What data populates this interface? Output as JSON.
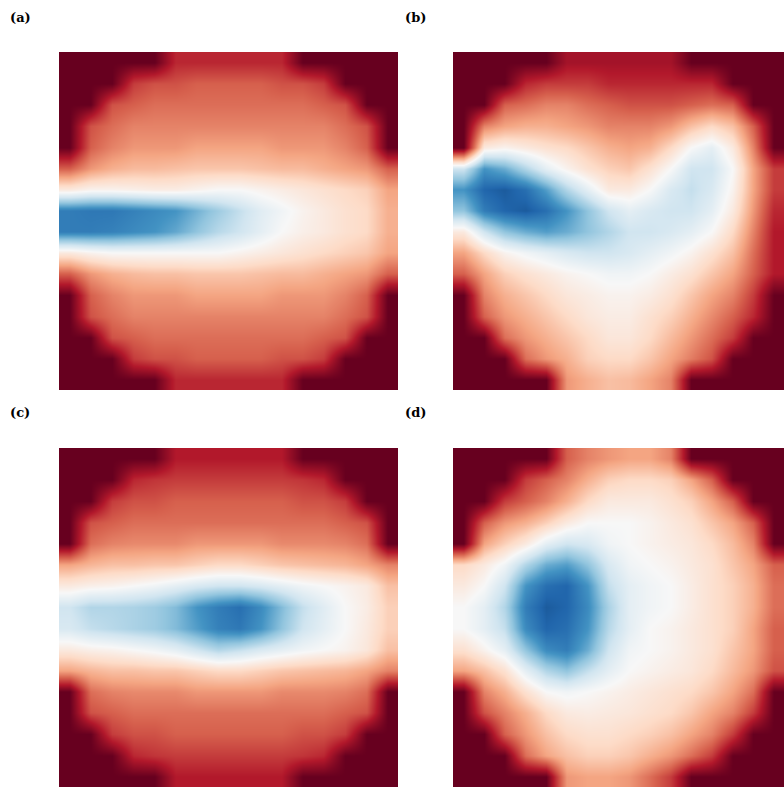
{
  "chart_data": [
    {
      "type": "heatmap",
      "title": "(a)",
      "tick_labels": false,
      "xlim": [
        -0.5,
        15.5
      ],
      "ylim": [
        15.5,
        -0.5
      ],
      "zlim": [
        0,
        1
      ],
      "z": [
        [
          0,
          0,
          0,
          0,
          0,
          0.12,
          0.12,
          0.12,
          0.12,
          0.12,
          0.12,
          0,
          0,
          0,
          0,
          0
        ],
        [
          0,
          0,
          0,
          0.15,
          0.18,
          0.18,
          0.2,
          0.2,
          0.2,
          0.2,
          0.18,
          0.18,
          0.15,
          0,
          0,
          0
        ],
        [
          0,
          0,
          0.18,
          0.2,
          0.22,
          0.22,
          0.22,
          0.22,
          0.22,
          0.22,
          0.22,
          0.22,
          0.2,
          0.18,
          0,
          0
        ],
        [
          0,
          0.18,
          0.22,
          0.25,
          0.25,
          0.25,
          0.25,
          0.25,
          0.25,
          0.25,
          0.25,
          0.25,
          0.25,
          0.22,
          0.18,
          0
        ],
        [
          0,
          0.2,
          0.25,
          0.28,
          0.28,
          0.28,
          0.3,
          0.3,
          0.3,
          0.3,
          0.28,
          0.28,
          0.28,
          0.25,
          0.2,
          0
        ],
        [
          0.2,
          0.28,
          0.32,
          0.34,
          0.34,
          0.35,
          0.36,
          0.36,
          0.36,
          0.35,
          0.34,
          0.34,
          0.32,
          0.3,
          0.28,
          0.2
        ],
        [
          0.45,
          0.48,
          0.48,
          0.47,
          0.46,
          0.46,
          0.48,
          0.5,
          0.5,
          0.48,
          0.46,
          0.44,
          0.42,
          0.4,
          0.38,
          0.3
        ],
        [
          0.85,
          0.86,
          0.86,
          0.84,
          0.82,
          0.8,
          0.74,
          0.68,
          0.62,
          0.56,
          0.52,
          0.48,
          0.45,
          0.42,
          0.4,
          0.32
        ],
        [
          0.85,
          0.85,
          0.84,
          0.82,
          0.8,
          0.76,
          0.7,
          0.64,
          0.6,
          0.55,
          0.5,
          0.47,
          0.45,
          0.42,
          0.4,
          0.32
        ],
        [
          0.45,
          0.48,
          0.5,
          0.5,
          0.5,
          0.5,
          0.5,
          0.5,
          0.48,
          0.46,
          0.44,
          0.42,
          0.4,
          0.38,
          0.36,
          0.3
        ],
        [
          0.2,
          0.28,
          0.32,
          0.34,
          0.35,
          0.35,
          0.36,
          0.36,
          0.36,
          0.35,
          0.34,
          0.34,
          0.32,
          0.3,
          0.28,
          0.2
        ],
        [
          0,
          0.2,
          0.25,
          0.28,
          0.28,
          0.28,
          0.3,
          0.3,
          0.3,
          0.3,
          0.28,
          0.28,
          0.28,
          0.25,
          0.2,
          0
        ],
        [
          0,
          0.18,
          0.22,
          0.25,
          0.25,
          0.25,
          0.25,
          0.25,
          0.25,
          0.25,
          0.25,
          0.25,
          0.25,
          0.22,
          0.18,
          0
        ],
        [
          0,
          0,
          0.18,
          0.2,
          0.22,
          0.22,
          0.22,
          0.22,
          0.22,
          0.22,
          0.22,
          0.22,
          0.2,
          0.18,
          0,
          0
        ],
        [
          0,
          0,
          0,
          0.15,
          0.18,
          0.18,
          0.2,
          0.2,
          0.2,
          0.2,
          0.18,
          0.18,
          0.15,
          0,
          0,
          0
        ],
        [
          0,
          0,
          0,
          0,
          0,
          0.12,
          0.12,
          0.12,
          0.12,
          0.12,
          0.12,
          0,
          0,
          0,
          0,
          0
        ]
      ]
    },
    {
      "type": "heatmap",
      "title": "(b)",
      "tick_labels": false,
      "xlim": [
        -0.5,
        15.5
      ],
      "ylim": [
        15.5,
        -0.5
      ],
      "zlim": [
        0,
        1
      ],
      "z": [
        [
          0,
          0,
          0,
          0,
          0,
          0.08,
          0.08,
          0.08,
          0.08,
          0.08,
          0.08,
          0,
          0,
          0,
          0,
          0
        ],
        [
          0,
          0,
          0,
          0.12,
          0.15,
          0.15,
          0.15,
          0.12,
          0.12,
          0.12,
          0.12,
          0.12,
          0.12,
          0,
          0,
          0
        ],
        [
          0,
          0,
          0.2,
          0.22,
          0.25,
          0.25,
          0.22,
          0.2,
          0.18,
          0.18,
          0.18,
          0.2,
          0.22,
          0.2,
          0,
          0
        ],
        [
          0,
          0.25,
          0.3,
          0.32,
          0.32,
          0.3,
          0.28,
          0.25,
          0.25,
          0.25,
          0.28,
          0.35,
          0.4,
          0.35,
          0.2,
          0
        ],
        [
          0,
          0.45,
          0.48,
          0.45,
          0.42,
          0.4,
          0.36,
          0.32,
          0.3,
          0.32,
          0.4,
          0.5,
          0.55,
          0.45,
          0.25,
          0
        ],
        [
          0.6,
          0.8,
          0.75,
          0.65,
          0.55,
          0.48,
          0.42,
          0.38,
          0.36,
          0.42,
          0.5,
          0.6,
          0.6,
          0.5,
          0.3,
          0.15
        ],
        [
          0.8,
          0.9,
          0.92,
          0.88,
          0.78,
          0.65,
          0.55,
          0.45,
          0.45,
          0.5,
          0.58,
          0.62,
          0.58,
          0.48,
          0.3,
          0.15
        ],
        [
          0.7,
          0.85,
          0.9,
          0.92,
          0.88,
          0.8,
          0.7,
          0.6,
          0.55,
          0.58,
          0.6,
          0.6,
          0.55,
          0.45,
          0.28,
          0.12
        ],
        [
          0.45,
          0.6,
          0.7,
          0.75,
          0.78,
          0.75,
          0.7,
          0.65,
          0.6,
          0.6,
          0.58,
          0.55,
          0.5,
          0.4,
          0.25,
          0.1
        ],
        [
          0.3,
          0.4,
          0.48,
          0.52,
          0.55,
          0.58,
          0.6,
          0.6,
          0.58,
          0.55,
          0.52,
          0.48,
          0.42,
          0.35,
          0.22,
          0.1
        ],
        [
          0.2,
          0.3,
          0.38,
          0.42,
          0.45,
          0.48,
          0.5,
          0.52,
          0.52,
          0.5,
          0.46,
          0.42,
          0.36,
          0.3,
          0.2,
          0.1
        ],
        [
          0,
          0.25,
          0.32,
          0.36,
          0.4,
          0.44,
          0.46,
          0.48,
          0.48,
          0.46,
          0.42,
          0.36,
          0.3,
          0.25,
          0.15,
          0
        ],
        [
          0,
          0.2,
          0.28,
          0.32,
          0.36,
          0.4,
          0.44,
          0.46,
          0.46,
          0.42,
          0.38,
          0.32,
          0.26,
          0.2,
          0.12,
          0
        ],
        [
          0,
          0,
          0.22,
          0.28,
          0.32,
          0.36,
          0.4,
          0.44,
          0.44,
          0.4,
          0.34,
          0.28,
          0.22,
          0.15,
          0,
          0
        ],
        [
          0,
          0,
          0,
          0.22,
          0.28,
          0.32,
          0.38,
          0.4,
          0.4,
          0.36,
          0.3,
          0.24,
          0.18,
          0,
          0,
          0
        ],
        [
          0,
          0,
          0,
          0,
          0,
          0.28,
          0.32,
          0.35,
          0.34,
          0.3,
          0.25,
          0,
          0,
          0,
          0,
          0
        ]
      ]
    },
    {
      "type": "heatmap",
      "title": "(c)",
      "tick_labels": false,
      "xlim": [
        -0.5,
        15.5
      ],
      "ylim": [
        15.5,
        -0.5
      ],
      "zlim": [
        0,
        1
      ],
      "z": [
        [
          0,
          0,
          0,
          0,
          0,
          0.1,
          0.1,
          0.1,
          0.1,
          0.1,
          0.1,
          0,
          0,
          0,
          0,
          0
        ],
        [
          0,
          0,
          0,
          0.12,
          0.14,
          0.15,
          0.15,
          0.15,
          0.15,
          0.15,
          0.15,
          0.14,
          0.12,
          0,
          0,
          0
        ],
        [
          0,
          0,
          0.15,
          0.18,
          0.18,
          0.2,
          0.2,
          0.2,
          0.2,
          0.2,
          0.2,
          0.18,
          0.18,
          0.15,
          0,
          0
        ],
        [
          0,
          0.18,
          0.2,
          0.22,
          0.22,
          0.22,
          0.22,
          0.22,
          0.22,
          0.22,
          0.22,
          0.22,
          0.22,
          0.2,
          0.18,
          0
        ],
        [
          0,
          0.22,
          0.25,
          0.26,
          0.26,
          0.26,
          0.28,
          0.28,
          0.28,
          0.28,
          0.26,
          0.26,
          0.26,
          0.25,
          0.22,
          0
        ],
        [
          0.3,
          0.33,
          0.35,
          0.35,
          0.36,
          0.36,
          0.38,
          0.4,
          0.4,
          0.38,
          0.36,
          0.35,
          0.34,
          0.33,
          0.3,
          0.25
        ],
        [
          0.45,
          0.47,
          0.48,
          0.5,
          0.52,
          0.55,
          0.58,
          0.6,
          0.6,
          0.58,
          0.55,
          0.52,
          0.5,
          0.48,
          0.45,
          0.35
        ],
        [
          0.6,
          0.65,
          0.65,
          0.66,
          0.68,
          0.72,
          0.8,
          0.85,
          0.88,
          0.82,
          0.72,
          0.62,
          0.56,
          0.5,
          0.46,
          0.38
        ],
        [
          0.58,
          0.62,
          0.64,
          0.66,
          0.68,
          0.72,
          0.78,
          0.84,
          0.86,
          0.8,
          0.7,
          0.6,
          0.55,
          0.5,
          0.45,
          0.38
        ],
        [
          0.45,
          0.47,
          0.48,
          0.5,
          0.52,
          0.55,
          0.6,
          0.65,
          0.62,
          0.58,
          0.55,
          0.52,
          0.5,
          0.48,
          0.44,
          0.35
        ],
        [
          0.3,
          0.33,
          0.35,
          0.35,
          0.36,
          0.36,
          0.38,
          0.4,
          0.4,
          0.38,
          0.36,
          0.35,
          0.34,
          0.33,
          0.3,
          0.25
        ],
        [
          0,
          0.22,
          0.25,
          0.26,
          0.26,
          0.26,
          0.28,
          0.28,
          0.28,
          0.28,
          0.26,
          0.26,
          0.26,
          0.25,
          0.22,
          0
        ],
        [
          0,
          0.18,
          0.2,
          0.22,
          0.22,
          0.22,
          0.22,
          0.22,
          0.22,
          0.22,
          0.22,
          0.22,
          0.22,
          0.2,
          0.18,
          0
        ],
        [
          0,
          0,
          0.15,
          0.18,
          0.18,
          0.2,
          0.2,
          0.2,
          0.2,
          0.2,
          0.2,
          0.18,
          0.18,
          0.15,
          0,
          0
        ],
        [
          0,
          0,
          0,
          0.12,
          0.14,
          0.15,
          0.15,
          0.15,
          0.15,
          0.15,
          0.15,
          0.14,
          0.12,
          0,
          0,
          0
        ],
        [
          0,
          0,
          0,
          0,
          0,
          0.1,
          0.1,
          0.1,
          0.1,
          0.1,
          0.1,
          0,
          0,
          0,
          0,
          0
        ]
      ]
    },
    {
      "type": "heatmap",
      "title": "(d)",
      "tick_labels": false,
      "xlim": [
        -0.5,
        15.5
      ],
      "ylim": [
        15.5,
        -0.5
      ],
      "zlim": [
        0,
        1
      ],
      "z": [
        [
          0,
          0,
          0,
          0,
          0,
          0.2,
          0.25,
          0.28,
          0.3,
          0.3,
          0.25,
          0,
          0,
          0,
          0,
          0
        ],
        [
          0,
          0,
          0,
          0.15,
          0.2,
          0.25,
          0.32,
          0.38,
          0.4,
          0.4,
          0.38,
          0.3,
          0.2,
          0,
          0,
          0
        ],
        [
          0,
          0,
          0.15,
          0.2,
          0.25,
          0.32,
          0.4,
          0.45,
          0.45,
          0.45,
          0.42,
          0.38,
          0.3,
          0.2,
          0,
          0
        ],
        [
          0,
          0.2,
          0.28,
          0.32,
          0.38,
          0.45,
          0.5,
          0.5,
          0.5,
          0.48,
          0.45,
          0.42,
          0.36,
          0.3,
          0.2,
          0
        ],
        [
          0,
          0.3,
          0.38,
          0.45,
          0.55,
          0.6,
          0.58,
          0.52,
          0.5,
          0.48,
          0.46,
          0.44,
          0.4,
          0.34,
          0.25,
          0
        ],
        [
          0.4,
          0.45,
          0.52,
          0.65,
          0.75,
          0.78,
          0.7,
          0.58,
          0.52,
          0.5,
          0.48,
          0.45,
          0.42,
          0.36,
          0.3,
          0.2
        ],
        [
          0.45,
          0.5,
          0.6,
          0.8,
          0.88,
          0.9,
          0.8,
          0.62,
          0.55,
          0.52,
          0.5,
          0.46,
          0.42,
          0.38,
          0.32,
          0.22
        ],
        [
          0.5,
          0.55,
          0.65,
          0.85,
          0.92,
          0.9,
          0.82,
          0.66,
          0.55,
          0.52,
          0.5,
          0.46,
          0.42,
          0.38,
          0.32,
          0.22
        ],
        [
          0.5,
          0.55,
          0.62,
          0.82,
          0.9,
          0.88,
          0.8,
          0.64,
          0.55,
          0.5,
          0.48,
          0.45,
          0.42,
          0.38,
          0.3,
          0.2
        ],
        [
          0.42,
          0.48,
          0.55,
          0.7,
          0.82,
          0.85,
          0.75,
          0.6,
          0.52,
          0.5,
          0.48,
          0.45,
          0.42,
          0.36,
          0.3,
          0.2
        ],
        [
          0.3,
          0.35,
          0.42,
          0.55,
          0.65,
          0.7,
          0.62,
          0.55,
          0.5,
          0.48,
          0.46,
          0.44,
          0.4,
          0.34,
          0.28,
          0.18
        ],
        [
          0,
          0.25,
          0.32,
          0.42,
          0.5,
          0.52,
          0.5,
          0.48,
          0.46,
          0.44,
          0.42,
          0.4,
          0.36,
          0.3,
          0.22,
          0
        ],
        [
          0,
          0.18,
          0.25,
          0.32,
          0.4,
          0.45,
          0.46,
          0.45,
          0.44,
          0.42,
          0.4,
          0.36,
          0.3,
          0.25,
          0.15,
          0
        ],
        [
          0,
          0,
          0.2,
          0.28,
          0.35,
          0.4,
          0.42,
          0.42,
          0.4,
          0.38,
          0.35,
          0.3,
          0.25,
          0.15,
          0,
          0
        ],
        [
          0,
          0,
          0,
          0.22,
          0.3,
          0.35,
          0.38,
          0.38,
          0.36,
          0.32,
          0.28,
          0.22,
          0.15,
          0,
          0,
          0
        ],
        [
          0,
          0,
          0,
          0,
          0,
          0.28,
          0.3,
          0.3,
          0.28,
          0.22,
          0.15,
          0,
          0,
          0,
          0,
          0
        ]
      ]
    }
  ]
}
